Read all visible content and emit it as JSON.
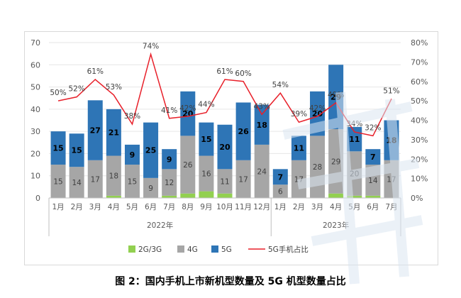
{
  "caption": "图 2：国内手机上市新机型数量及 5G 机型数量占比",
  "chart_data": {
    "type": "bar",
    "stacked": true,
    "title": "",
    "categories": [
      "1月",
      "2月",
      "3月",
      "4月",
      "5月",
      "6月",
      "7月",
      "8月",
      "9月",
      "10月",
      "11月",
      "12月",
      "1月",
      "2月",
      "3月",
      "4月",
      "5月",
      "6月",
      "7月"
    ],
    "groups": [
      {
        "label": "2022年",
        "from": 0,
        "to": 11
      },
      {
        "label": "2023年",
        "from": 12,
        "to": 18
      }
    ],
    "series": [
      {
        "name": "2G/3G",
        "color": "#92d050",
        "values": [
          0,
          0,
          0,
          1,
          0,
          0,
          1,
          2,
          3,
          2,
          0,
          0,
          0,
          0,
          0,
          2,
          1,
          1,
          0
        ]
      },
      {
        "name": "4G",
        "color": "#a6a6a6",
        "values": [
          15,
          14,
          17,
          18,
          15,
          9,
          12,
          26,
          16,
          11,
          17,
          24,
          6,
          17,
          28,
          29,
          20,
          14,
          17
        ],
        "labels": [
          15,
          14,
          17,
          18,
          15,
          9,
          12,
          26,
          16,
          11,
          17,
          24,
          6,
          17,
          28,
          29,
          20,
          14,
          17
        ]
      },
      {
        "name": "5G",
        "color": "#2e75b6",
        "values": [
          15,
          15,
          27,
          21,
          9,
          25,
          9,
          20,
          15,
          20,
          26,
          18,
          7,
          11,
          20,
          29,
          11,
          7,
          18
        ],
        "labels": [
          15,
          15,
          27,
          21,
          9,
          25,
          9,
          20,
          15,
          20,
          26,
          18,
          7,
          11,
          20,
          29,
          11,
          7,
          18
        ]
      }
    ],
    "line": {
      "name": "5G手机占比",
      "color": "#e8202a",
      "axis": "right",
      "values": [
        50,
        52,
        61,
        53,
        38,
        74,
        41,
        42,
        44,
        61,
        60,
        43,
        54,
        39,
        42,
        49,
        34,
        32,
        51
      ],
      "labels": [
        "50%",
        "52%",
        "61%",
        "53%",
        "38%",
        "74%",
        "41%",
        "42%",
        "44%",
        "61%",
        "60%",
        "43%",
        "54%",
        "39%",
        "42%",
        "49%",
        "34%",
        "32%",
        "51%"
      ]
    },
    "y_left": {
      "min": 0,
      "max": 70,
      "ticks": [
        "0",
        "10",
        "20",
        "30",
        "40",
        "50",
        "60",
        "70"
      ]
    },
    "y_right": {
      "min": 0,
      "max": 80,
      "ticks": [
        "0%",
        "10%",
        "20%",
        "30%",
        "40%",
        "50%",
        "60%",
        "70%",
        "80%"
      ]
    },
    "grid": true,
    "legend_position": "bottom"
  }
}
